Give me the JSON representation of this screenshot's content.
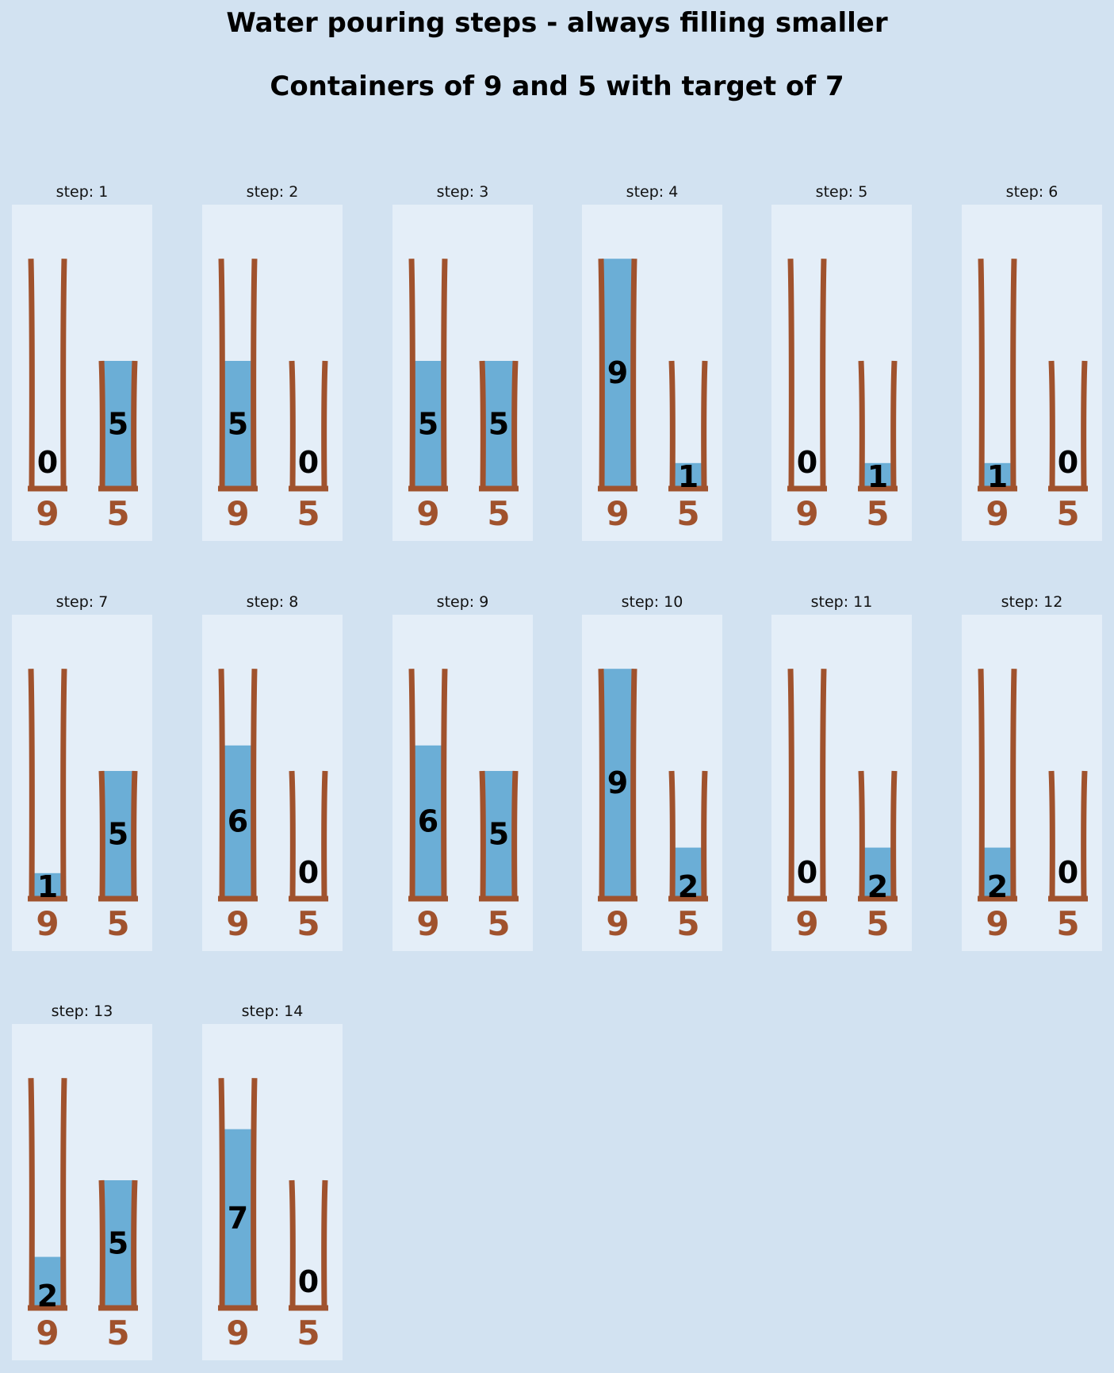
{
  "title": "Water pouring steps - always filling smaller",
  "subtitle": "Containers of 9 and 5 with target of 7",
  "colors": {
    "background": "#d2e2f1",
    "panel": "#e4eef8",
    "container": "#a0522d",
    "water": "#6baed6",
    "text": "#000000"
  },
  "capacities": [
    9,
    5
  ],
  "capacity_labels": [
    "9",
    "5"
  ],
  "step_prefix": "step: ",
  "steps": [
    {
      "step": 1,
      "levels": [
        0,
        5
      ]
    },
    {
      "step": 2,
      "levels": [
        5,
        0
      ]
    },
    {
      "step": 3,
      "levels": [
        5,
        5
      ]
    },
    {
      "step": 4,
      "levels": [
        9,
        1
      ]
    },
    {
      "step": 5,
      "levels": [
        0,
        1
      ]
    },
    {
      "step": 6,
      "levels": [
        1,
        0
      ]
    },
    {
      "step": 7,
      "levels": [
        1,
        5
      ]
    },
    {
      "step": 8,
      "levels": [
        6,
        0
      ]
    },
    {
      "step": 9,
      "levels": [
        6,
        5
      ]
    },
    {
      "step": 10,
      "levels": [
        9,
        2
      ]
    },
    {
      "step": 11,
      "levels": [
        0,
        2
      ]
    },
    {
      "step": 12,
      "levels": [
        2,
        0
      ]
    },
    {
      "step": 13,
      "levels": [
        2,
        5
      ]
    },
    {
      "step": 14,
      "levels": [
        7,
        0
      ]
    }
  ]
}
